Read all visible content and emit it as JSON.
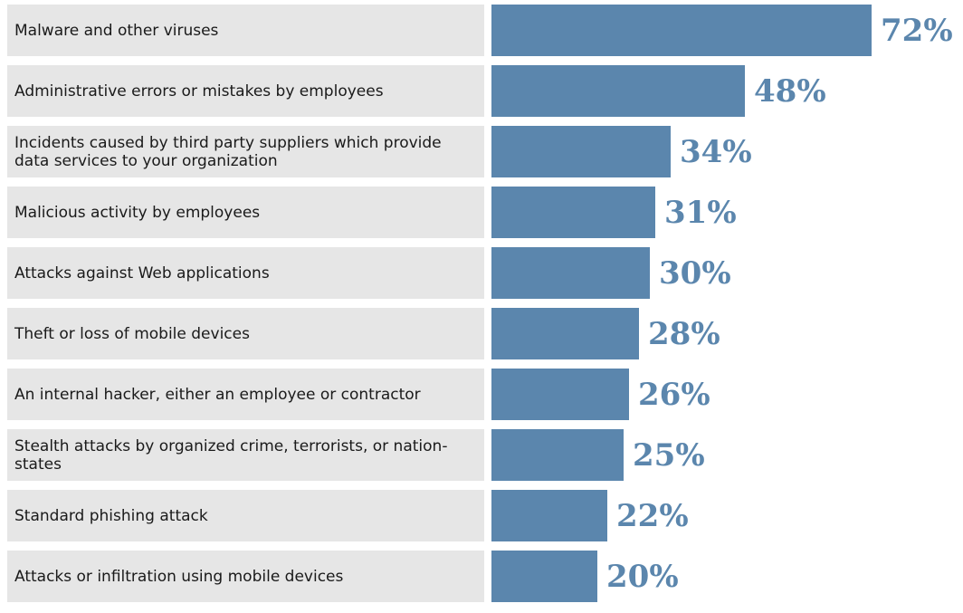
{
  "chart_data": {
    "type": "bar",
    "orientation": "horizontal",
    "categories": [
      "Malware and other viruses",
      "Administrative errors or mistakes by employees",
      "Incidents caused by third party suppliers which provide data services to your organization",
      "Malicious activity by employees",
      "Attacks against Web applications",
      "Theft or loss of mobile devices",
      "An internal hacker, either an employee or contractor",
      "Stealth attacks by organized crime, terrorists, or nation-states",
      "Standard phishing attack",
      "Attacks or infiltration using mobile devices"
    ],
    "values": [
      72,
      48,
      34,
      31,
      30,
      28,
      26,
      25,
      22,
      20
    ],
    "value_labels": [
      "72%",
      "48%",
      "34%",
      "31%",
      "30%",
      "28%",
      "26%",
      "25%",
      "22%",
      "20%"
    ],
    "xlim": [
      0,
      100
    ],
    "title": "",
    "xlabel": "",
    "ylabel": "",
    "grid": false,
    "legend": "none",
    "colors": {
      "bar": "#5b86ad",
      "label_background": "#e6e6e6",
      "value_text": "#5b86ad",
      "label_text": "#1a1a1a"
    }
  }
}
